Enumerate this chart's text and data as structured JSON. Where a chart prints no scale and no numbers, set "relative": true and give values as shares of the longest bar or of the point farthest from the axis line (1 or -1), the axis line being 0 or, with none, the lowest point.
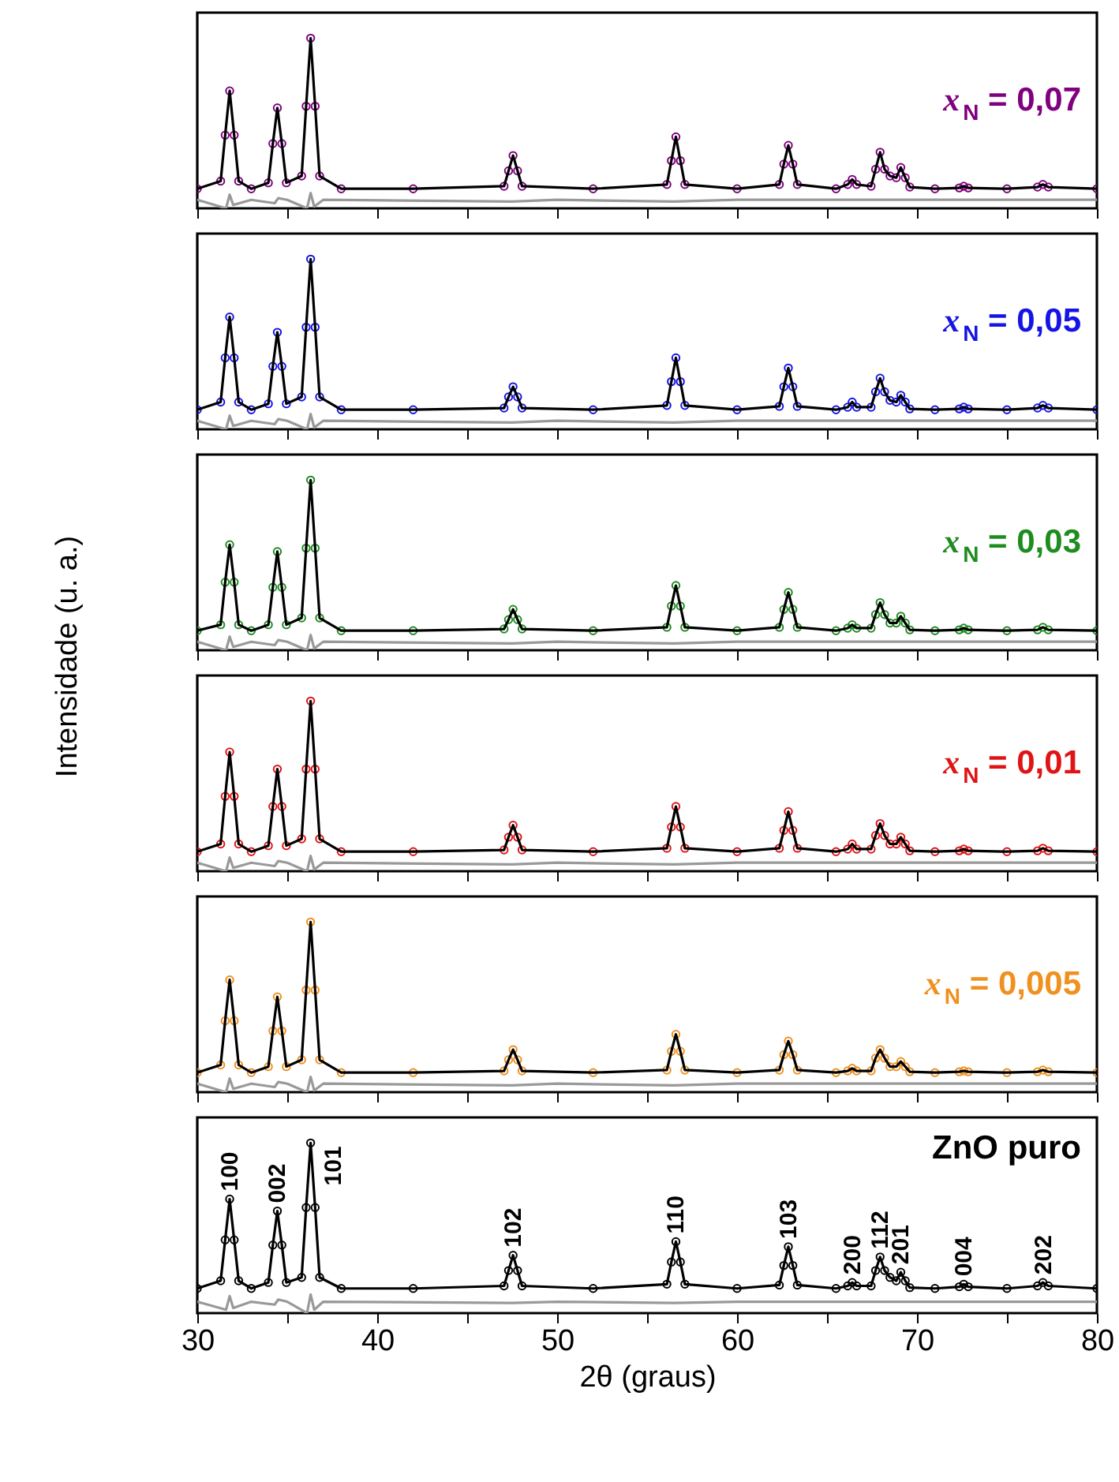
{
  "chart_data": [
    {
      "type": "line",
      "relative": true,
      "xlim": [
        30,
        80
      ],
      "xticks": [
        30,
        {
          "value": 35,
          "label": null
        },
        40,
        {
          "value": 45,
          "label": null
        },
        50,
        {
          "value": 55,
          "label": null
        },
        60,
        {
          "value": 65,
          "label": null
        },
        70,
        {
          "value": 75,
          "label": null
        },
        80
      ],
      "tick_labels": false,
      "x": [
        30,
        31.3,
        31.55,
        31.8,
        32.05,
        32.3,
        33,
        33.95,
        34.2,
        34.45,
        34.7,
        34.95,
        35.8,
        36.05,
        36.3,
        36.55,
        36.8,
        38,
        42,
        47.05,
        47.3,
        47.55,
        47.8,
        48.05,
        52,
        56.1,
        56.35,
        56.6,
        56.85,
        57.1,
        60,
        62.35,
        62.6,
        62.85,
        63.1,
        63.35,
        65.5,
        66.15,
        66.4,
        66.65,
        67.45,
        67.7,
        67.95,
        68.2,
        68.5,
        68.85,
        69.1,
        69.35,
        69.6,
        71,
        72.35,
        72.6,
        72.85,
        75,
        76.7,
        77,
        77.3,
        80
      ],
      "series": [
        {
          "type": "scatter",
          "marker": "circle",
          "name": "x$_{N}$ = 0,07",
          "color": "#800080",
          "values": [
            0.115,
            0.16,
            0.43,
            0.69,
            0.43,
            0.16,
            0.115,
            0.15,
            0.38,
            0.59,
            0.38,
            0.15,
            0.19,
            0.6,
            1,
            0.6,
            0.19,
            0.115,
            0.115,
            0.13,
            0.22,
            0.31,
            0.22,
            0.13,
            0.115,
            0.14,
            0.28,
            0.42,
            0.28,
            0.14,
            0.115,
            0.14,
            0.26,
            0.37,
            0.26,
            0.14,
            0.115,
            0.14,
            0.17,
            0.14,
            0.13,
            0.23,
            0.33,
            0.23,
            0.19,
            0.18,
            0.24,
            0.18,
            0.125,
            0.115,
            0.12,
            0.13,
            0.12,
            0.115,
            0.125,
            0.14,
            0.125,
            0.115
          ]
        },
        {
          "color": "#000000",
          "values": [
            0.115,
            0.16,
            0.43,
            0.69,
            0.43,
            0.16,
            0.115,
            0.15,
            0.38,
            0.59,
            0.38,
            0.15,
            0.19,
            0.6,
            1,
            0.6,
            0.19,
            0.115,
            0.115,
            0.13,
            0.22,
            0.31,
            0.22,
            0.13,
            0.115,
            0.14,
            0.28,
            0.42,
            0.28,
            0.14,
            0.115,
            0.14,
            0.26,
            0.37,
            0.26,
            0.14,
            0.115,
            0.14,
            0.17,
            0.14,
            0.13,
            0.23,
            0.33,
            0.23,
            0.19,
            0.18,
            0.24,
            0.18,
            0.125,
            0.115,
            0.12,
            0.13,
            0.12,
            0.115,
            0.125,
            0.14,
            0.125,
            0.115
          ]
        },
        {
          "color": "#999999",
          "x": [
            30,
            31.6,
            31.8,
            32,
            33,
            34.3,
            34.5,
            35,
            36.1,
            36.3,
            36.5,
            37,
            47.5,
            50,
            56.5,
            60,
            80
          ],
          "values": [
            0.05,
            0,
            0.08,
            0.02,
            0.05,
            0.03,
            0.06,
            0.05,
            0,
            0.09,
            0.01,
            0.05,
            0.04,
            0.05,
            0.04,
            0.05,
            0.05
          ]
        }
      ]
    },
    {
      "type": "line",
      "relative": true,
      "xlim": [
        30,
        80
      ],
      "xticks": [
        30,
        {
          "value": 35,
          "label": null
        },
        40,
        {
          "value": 45,
          "label": null
        },
        50,
        {
          "value": 55,
          "label": null
        },
        60,
        {
          "value": 65,
          "label": null
        },
        70,
        {
          "value": 75,
          "label": null
        },
        80
      ],
      "tick_labels": false,
      "x": [
        30,
        31.3,
        31.55,
        31.8,
        32.05,
        32.3,
        33,
        33.95,
        34.2,
        34.45,
        34.7,
        34.95,
        35.8,
        36.05,
        36.3,
        36.55,
        36.8,
        38,
        42,
        47.05,
        47.3,
        47.55,
        47.8,
        48.05,
        52,
        56.1,
        56.35,
        56.6,
        56.85,
        57.1,
        60,
        62.35,
        62.6,
        62.85,
        63.1,
        63.35,
        65.5,
        66.15,
        66.4,
        66.65,
        67.45,
        67.7,
        67.95,
        68.2,
        68.5,
        68.85,
        69.1,
        69.35,
        69.6,
        71,
        72.35,
        72.6,
        72.85,
        75,
        76.7,
        77,
        77.3,
        80
      ],
      "series": [
        {
          "type": "scatter",
          "marker": "circle",
          "name": "x$_{N}$ = 0,05",
          "color": "#1414e6",
          "values": [
            0.115,
            0.16,
            0.42,
            0.66,
            0.42,
            0.16,
            0.115,
            0.15,
            0.37,
            0.57,
            0.37,
            0.15,
            0.19,
            0.6,
            1,
            0.6,
            0.19,
            0.115,
            0.115,
            0.125,
            0.19,
            0.25,
            0.19,
            0.125,
            0.115,
            0.14,
            0.28,
            0.42,
            0.28,
            0.14,
            0.115,
            0.135,
            0.25,
            0.36,
            0.25,
            0.135,
            0.115,
            0.13,
            0.16,
            0.13,
            0.13,
            0.22,
            0.3,
            0.22,
            0.17,
            0.16,
            0.2,
            0.16,
            0.12,
            0.115,
            0.12,
            0.13,
            0.12,
            0.115,
            0.125,
            0.14,
            0.125,
            0.115
          ]
        },
        {
          "color": "#000000",
          "values": [
            0.115,
            0.16,
            0.42,
            0.66,
            0.42,
            0.16,
            0.115,
            0.15,
            0.37,
            0.57,
            0.37,
            0.15,
            0.19,
            0.6,
            1,
            0.6,
            0.19,
            0.115,
            0.115,
            0.125,
            0.19,
            0.25,
            0.19,
            0.125,
            0.115,
            0.14,
            0.28,
            0.42,
            0.28,
            0.14,
            0.115,
            0.135,
            0.25,
            0.36,
            0.25,
            0.135,
            0.115,
            0.13,
            0.16,
            0.13,
            0.13,
            0.22,
            0.3,
            0.22,
            0.17,
            0.16,
            0.2,
            0.16,
            0.12,
            0.115,
            0.12,
            0.13,
            0.12,
            0.115,
            0.125,
            0.14,
            0.125,
            0.115
          ]
        },
        {
          "color": "#999999",
          "x": [
            30,
            31.6,
            31.8,
            32,
            33,
            34.3,
            34.5,
            35,
            36.1,
            36.3,
            36.5,
            37,
            47.5,
            50,
            56.5,
            60,
            80
          ],
          "values": [
            0.05,
            0,
            0.08,
            0.02,
            0.05,
            0.03,
            0.06,
            0.05,
            0,
            0.09,
            0.01,
            0.05,
            0.04,
            0.05,
            0.04,
            0.05,
            0.05
          ]
        }
      ]
    },
    {
      "type": "line",
      "relative": true,
      "xlim": [
        30,
        80
      ],
      "xticks": [
        30,
        {
          "value": 35,
          "label": null
        },
        40,
        {
          "value": 45,
          "label": null
        },
        50,
        {
          "value": 55,
          "label": null
        },
        60,
        {
          "value": 65,
          "label": null
        },
        70,
        {
          "value": 75,
          "label": null
        },
        80
      ],
      "tick_labels": false,
      "ylabel": "Intensidade (u. a.)",
      "x": [
        30,
        31.3,
        31.55,
        31.8,
        32.05,
        32.3,
        33,
        33.95,
        34.2,
        34.45,
        34.7,
        34.95,
        35.8,
        36.05,
        36.3,
        36.55,
        36.8,
        38,
        42,
        47.05,
        47.3,
        47.55,
        47.8,
        48.05,
        52,
        56.1,
        56.35,
        56.6,
        56.85,
        57.1,
        60,
        62.35,
        62.6,
        62.85,
        63.1,
        63.35,
        65.5,
        66.15,
        66.4,
        66.65,
        67.45,
        67.7,
        67.95,
        68.2,
        68.5,
        68.85,
        69.1,
        69.35,
        69.6,
        71,
        72.35,
        72.6,
        72.85,
        75,
        76.7,
        77,
        77.3,
        80
      ],
      "series": [
        {
          "type": "scatter",
          "marker": "circle",
          "name": "x$_{N}$ = 0,03",
          "color": "#1e8c1e",
          "values": [
            0.115,
            0.15,
            0.4,
            0.62,
            0.4,
            0.15,
            0.115,
            0.15,
            0.37,
            0.58,
            0.37,
            0.15,
            0.19,
            0.6,
            1,
            0.6,
            0.19,
            0.115,
            0.115,
            0.125,
            0.18,
            0.24,
            0.18,
            0.125,
            0.115,
            0.135,
            0.26,
            0.38,
            0.26,
            0.135,
            0.115,
            0.135,
            0.24,
            0.34,
            0.24,
            0.135,
            0.115,
            0.13,
            0.15,
            0.13,
            0.13,
            0.21,
            0.28,
            0.21,
            0.16,
            0.16,
            0.2,
            0.16,
            0.12,
            0.115,
            0.12,
            0.13,
            0.12,
            0.115,
            0.12,
            0.135,
            0.12,
            0.115
          ]
        },
        {
          "color": "#000000",
          "values": [
            0.115,
            0.15,
            0.4,
            0.62,
            0.4,
            0.15,
            0.115,
            0.15,
            0.37,
            0.58,
            0.37,
            0.15,
            0.19,
            0.6,
            1,
            0.6,
            0.19,
            0.115,
            0.115,
            0.125,
            0.18,
            0.24,
            0.18,
            0.125,
            0.115,
            0.135,
            0.26,
            0.38,
            0.26,
            0.135,
            0.115,
            0.135,
            0.24,
            0.34,
            0.24,
            0.135,
            0.115,
            0.13,
            0.15,
            0.13,
            0.13,
            0.21,
            0.28,
            0.21,
            0.16,
            0.16,
            0.2,
            0.16,
            0.12,
            0.115,
            0.12,
            0.13,
            0.12,
            0.115,
            0.12,
            0.135,
            0.12,
            0.115
          ]
        },
        {
          "color": "#999999",
          "x": [
            30,
            31.6,
            31.8,
            32,
            33,
            34.3,
            34.5,
            35,
            36.1,
            36.3,
            36.5,
            37,
            47.5,
            50,
            56.5,
            60,
            80
          ],
          "values": [
            0.05,
            0,
            0.08,
            0.02,
            0.05,
            0.03,
            0.06,
            0.05,
            0,
            0.09,
            0.01,
            0.05,
            0.04,
            0.05,
            0.04,
            0.05,
            0.05
          ]
        }
      ]
    },
    {
      "type": "line",
      "relative": true,
      "xlim": [
        30,
        80
      ],
      "xticks": [
        30,
        {
          "value": 35,
          "label": null
        },
        40,
        {
          "value": 45,
          "label": null
        },
        50,
        {
          "value": 55,
          "label": null
        },
        60,
        {
          "value": 65,
          "label": null
        },
        70,
        {
          "value": 75,
          "label": null
        },
        80
      ],
      "tick_labels": false,
      "x": [
        30,
        31.3,
        31.55,
        31.8,
        32.05,
        32.3,
        33,
        33.95,
        34.2,
        34.45,
        34.7,
        34.95,
        35.8,
        36.05,
        36.3,
        36.55,
        36.8,
        38,
        42,
        47.05,
        47.3,
        47.55,
        47.8,
        48.05,
        52,
        56.1,
        56.35,
        56.6,
        56.85,
        57.1,
        60,
        62.35,
        62.6,
        62.85,
        63.1,
        63.35,
        65.5,
        66.15,
        66.4,
        66.65,
        67.45,
        67.7,
        67.95,
        68.2,
        68.5,
        68.85,
        69.1,
        69.35,
        69.6,
        71,
        72.35,
        72.6,
        72.85,
        75,
        76.7,
        77,
        77.3,
        80
      ],
      "series": [
        {
          "type": "scatter",
          "marker": "circle",
          "name": "x$_{N}$ = 0,01",
          "color": "#e01414",
          "values": [
            0.115,
            0.16,
            0.44,
            0.7,
            0.44,
            0.16,
            0.115,
            0.15,
            0.38,
            0.6,
            0.38,
            0.15,
            0.19,
            0.6,
            1,
            0.6,
            0.19,
            0.115,
            0.115,
            0.125,
            0.2,
            0.27,
            0.2,
            0.125,
            0.115,
            0.135,
            0.26,
            0.38,
            0.26,
            0.135,
            0.115,
            0.135,
            0.24,
            0.35,
            0.24,
            0.135,
            0.115,
            0.13,
            0.16,
            0.13,
            0.13,
            0.21,
            0.28,
            0.21,
            0.16,
            0.16,
            0.2,
            0.16,
            0.12,
            0.115,
            0.12,
            0.13,
            0.12,
            0.115,
            0.12,
            0.135,
            0.12,
            0.115
          ]
        },
        {
          "color": "#000000",
          "values": [
            0.115,
            0.16,
            0.44,
            0.7,
            0.44,
            0.16,
            0.115,
            0.15,
            0.38,
            0.6,
            0.38,
            0.15,
            0.19,
            0.6,
            1,
            0.6,
            0.19,
            0.115,
            0.115,
            0.125,
            0.2,
            0.27,
            0.2,
            0.125,
            0.115,
            0.135,
            0.26,
            0.38,
            0.26,
            0.135,
            0.115,
            0.135,
            0.24,
            0.35,
            0.24,
            0.135,
            0.115,
            0.13,
            0.16,
            0.13,
            0.13,
            0.21,
            0.28,
            0.21,
            0.16,
            0.16,
            0.2,
            0.16,
            0.12,
            0.115,
            0.12,
            0.13,
            0.12,
            0.115,
            0.12,
            0.135,
            0.12,
            0.115
          ]
        },
        {
          "color": "#999999",
          "x": [
            30,
            31.6,
            31.8,
            32,
            33,
            34.3,
            34.5,
            35,
            36.1,
            36.3,
            36.5,
            37,
            47.5,
            50,
            56.5,
            60,
            80
          ],
          "values": [
            0.05,
            0,
            0.08,
            0.02,
            0.05,
            0.03,
            0.06,
            0.05,
            0,
            0.09,
            0.01,
            0.05,
            0.04,
            0.05,
            0.04,
            0.05,
            0.05
          ]
        }
      ]
    },
    {
      "type": "line",
      "relative": true,
      "xlim": [
        30,
        80
      ],
      "xticks": [
        30,
        {
          "value": 35,
          "label": null
        },
        40,
        {
          "value": 45,
          "label": null
        },
        50,
        {
          "value": 55,
          "label": null
        },
        60,
        {
          "value": 65,
          "label": null
        },
        70,
        {
          "value": 75,
          "label": null
        },
        80
      ],
      "tick_labels": false,
      "x": [
        30,
        31.3,
        31.55,
        31.8,
        32.05,
        32.3,
        33,
        33.95,
        34.2,
        34.45,
        34.7,
        34.95,
        35.8,
        36.05,
        36.3,
        36.55,
        36.8,
        38,
        42,
        47.05,
        47.3,
        47.55,
        47.8,
        48.05,
        52,
        56.1,
        56.35,
        56.6,
        56.85,
        57.1,
        60,
        62.35,
        62.6,
        62.85,
        63.1,
        63.35,
        65.5,
        66.15,
        66.4,
        66.65,
        67.45,
        67.7,
        67.95,
        68.2,
        68.5,
        68.85,
        69.1,
        69.35,
        69.6,
        71,
        72.35,
        72.6,
        72.85,
        75,
        76.7,
        77,
        77.3,
        80
      ],
      "series": [
        {
          "type": "scatter",
          "marker": "circle",
          "name": "x$_{N}$ = 0,005",
          "color": "#f0901e",
          "values": [
            0.115,
            0.16,
            0.42,
            0.66,
            0.42,
            0.16,
            0.115,
            0.15,
            0.36,
            0.56,
            0.36,
            0.15,
            0.19,
            0.6,
            1,
            0.6,
            0.19,
            0.115,
            0.115,
            0.125,
            0.19,
            0.25,
            0.19,
            0.125,
            0.115,
            0.13,
            0.24,
            0.34,
            0.24,
            0.13,
            0.115,
            0.13,
            0.22,
            0.3,
            0.22,
            0.13,
            0.115,
            0.125,
            0.14,
            0.125,
            0.125,
            0.2,
            0.25,
            0.2,
            0.15,
            0.15,
            0.18,
            0.15,
            0.12,
            0.115,
            0.12,
            0.125,
            0.12,
            0.115,
            0.12,
            0.13,
            0.12,
            0.115
          ]
        },
        {
          "color": "#000000",
          "values": [
            0.115,
            0.16,
            0.42,
            0.66,
            0.42,
            0.16,
            0.115,
            0.15,
            0.36,
            0.56,
            0.36,
            0.15,
            0.19,
            0.6,
            1,
            0.6,
            0.19,
            0.115,
            0.115,
            0.125,
            0.19,
            0.25,
            0.19,
            0.125,
            0.115,
            0.13,
            0.24,
            0.34,
            0.24,
            0.13,
            0.115,
            0.13,
            0.22,
            0.3,
            0.22,
            0.13,
            0.115,
            0.125,
            0.14,
            0.125,
            0.125,
            0.2,
            0.25,
            0.2,
            0.15,
            0.15,
            0.18,
            0.15,
            0.12,
            0.115,
            0.12,
            0.125,
            0.12,
            0.115,
            0.12,
            0.13,
            0.12,
            0.115
          ]
        },
        {
          "color": "#999999",
          "x": [
            30,
            31.6,
            31.8,
            32,
            33,
            34.3,
            34.5,
            35,
            36.1,
            36.3,
            36.5,
            37,
            47.5,
            50,
            56.5,
            60,
            80
          ],
          "values": [
            0.05,
            0,
            0.08,
            0.02,
            0.05,
            0.03,
            0.06,
            0.05,
            0,
            0.09,
            0.01,
            0.05,
            0.04,
            0.05,
            0.04,
            0.05,
            0.05
          ]
        }
      ]
    },
    {
      "type": "line",
      "relative": true,
      "xlim": [
        30,
        80
      ],
      "xticks": [
        30,
        {
          "value": 35,
          "label": null
        },
        40,
        {
          "value": 45,
          "label": null
        },
        50,
        {
          "value": 55,
          "label": null
        },
        60,
        {
          "value": 65,
          "label": null
        },
        70,
        {
          "value": 75,
          "label": null
        },
        80
      ],
      "tick_labels": "x",
      "xlabel": "2θ (graus)",
      "x": [
        30,
        31.3,
        31.55,
        31.8,
        32.05,
        32.3,
        33,
        33.95,
        34.2,
        34.45,
        34.7,
        34.95,
        35.8,
        36.05,
        36.3,
        36.55,
        36.8,
        38,
        42,
        47.05,
        47.3,
        47.55,
        47.8,
        48.05,
        52,
        56.1,
        56.35,
        56.6,
        56.85,
        57.1,
        60,
        62.35,
        62.6,
        62.85,
        63.1,
        63.35,
        65.5,
        66.15,
        66.4,
        66.65,
        67.45,
        67.7,
        67.95,
        68.2,
        68.5,
        68.85,
        69.1,
        69.35,
        69.6,
        71,
        72.35,
        72.6,
        72.85,
        75,
        76.7,
        77,
        77.3,
        80
      ],
      "series": [
        {
          "type": "scatter",
          "marker": "circle",
          "name": "ZnO puro",
          "color": "#000000",
          "values": [
            0.145,
            0.19,
            0.43,
            0.67,
            0.43,
            0.19,
            0.145,
            0.18,
            0.4,
            0.6,
            0.4,
            0.18,
            0.21,
            0.62,
            1,
            0.62,
            0.21,
            0.145,
            0.145,
            0.16,
            0.25,
            0.34,
            0.25,
            0.16,
            0.145,
            0.17,
            0.3,
            0.42,
            0.3,
            0.17,
            0.145,
            0.165,
            0.28,
            0.39,
            0.28,
            0.165,
            0.145,
            0.16,
            0.18,
            0.16,
            0.16,
            0.25,
            0.33,
            0.25,
            0.21,
            0.19,
            0.24,
            0.19,
            0.15,
            0.145,
            0.155,
            0.17,
            0.155,
            0.145,
            0.16,
            0.18,
            0.16,
            0.145
          ]
        },
        {
          "color": "#000000",
          "values": [
            0.145,
            0.19,
            0.43,
            0.67,
            0.43,
            0.19,
            0.145,
            0.18,
            0.4,
            0.6,
            0.4,
            0.18,
            0.21,
            0.62,
            1,
            0.62,
            0.21,
            0.145,
            0.145,
            0.16,
            0.25,
            0.34,
            0.25,
            0.16,
            0.145,
            0.17,
            0.3,
            0.42,
            0.3,
            0.17,
            0.145,
            0.165,
            0.28,
            0.39,
            0.28,
            0.165,
            0.145,
            0.16,
            0.18,
            0.16,
            0.16,
            0.25,
            0.33,
            0.25,
            0.21,
            0.19,
            0.24,
            0.19,
            0.15,
            0.145,
            0.155,
            0.17,
            0.155,
            0.145,
            0.16,
            0.18,
            0.16,
            0.145
          ]
        },
        {
          "color": "#999999",
          "x": [
            30,
            31.6,
            31.8,
            32,
            33,
            34.3,
            34.5,
            35,
            36.1,
            36.3,
            36.5,
            37,
            47.5,
            50,
            56.5,
            60,
            80
          ],
          "values": [
            0.067,
            0.02,
            0.1,
            0.03,
            0.067,
            0.05,
            0.08,
            0.067,
            0,
            0.11,
            0.02,
            0.067,
            0.06,
            0.067,
            0.06,
            0.067,
            0.067
          ]
        }
      ],
      "annotations": [
        {
          "text": "100",
          "x": 31.8,
          "y": 0.67
        },
        {
          "text": "002",
          "x": 34.45,
          "y": 0.6
        },
        {
          "text": "101",
          "x": 36.3,
          "y": 1
        },
        {
          "text": "102",
          "x": 47.55,
          "y": 0.34
        },
        {
          "text": "110",
          "x": 56.6,
          "y": 0.42
        },
        {
          "text": "103",
          "x": 62.85,
          "y": 0.39
        },
        {
          "text": "200",
          "x": 66.4,
          "y": 0.18
        },
        {
          "text": "112",
          "x": 67.95,
          "y": 0.33
        },
        {
          "text": "201",
          "x": 69.1,
          "y": 0.24
        },
        {
          "text": "004",
          "x": 72.6,
          "y": 0.17
        },
        {
          "text": "202",
          "x": 77,
          "y": 0.18
        }
      ]
    }
  ]
}
